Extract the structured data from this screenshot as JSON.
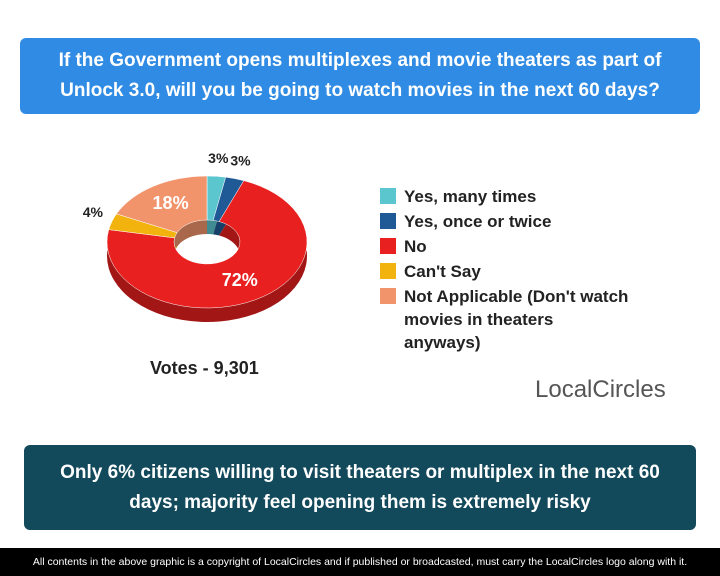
{
  "chart_data": {
    "type": "pie",
    "title": "If the Government opens multiplexes and movie theaters as part of Unlock 3.0, will you be going to watch movies in the next 60 days?",
    "categories": [
      "Yes, many times",
      "Yes, once or twice",
      "No",
      "Can't Say",
      "Not Applicable (Don't watch movies in theaters anyways)"
    ],
    "values": [
      3,
      3,
      72,
      4,
      18
    ],
    "value_labels": [
      "3%",
      "3%",
      "72%",
      "4%",
      "18%"
    ],
    "colors": [
      "#5cc6cf",
      "#1f5a96",
      "#e8201f",
      "#f2b30f",
      "#f2946b"
    ],
    "donut": true,
    "note": "Votes - 9,301"
  },
  "logo": [
    "Local",
    "Circles"
  ],
  "summary": "Only 6% citizens willing to visit theaters or multiplex in the next 60 days; majority feel opening them is extremely risky",
  "footer": "All contents in the above graphic is a copyright of LocalCircles and if published or broadcasted, must carry the LocalCircles logo along with it."
}
